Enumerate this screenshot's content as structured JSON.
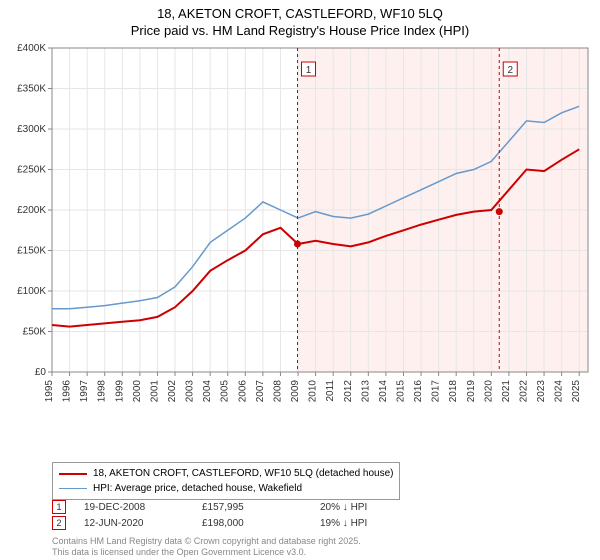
{
  "title_line1": "18, AKETON CROFT, CASTLEFORD, WF10 5LQ",
  "title_line2": "Price paid vs. HM Land Registry's House Price Index (HPI)",
  "chart": {
    "type": "line",
    "background_color": "#ffffff",
    "plot_bg_left": "#ffffff",
    "plot_bg_right": "#fff0f0",
    "grid_color": "#e6e6e6",
    "border_color": "#888888",
    "xmin": 1995,
    "xmax": 2025.5,
    "xticks": [
      1995,
      1996,
      1997,
      1998,
      1999,
      2000,
      2001,
      2002,
      2003,
      2004,
      2005,
      2006,
      2007,
      2008,
      2009,
      2010,
      2011,
      2012,
      2013,
      2014,
      2015,
      2016,
      2017,
      2018,
      2019,
      2020,
      2021,
      2022,
      2023,
      2024,
      2025
    ],
    "ymin": 0,
    "ymax": 400000,
    "ytick_step": 50000,
    "ytick_labels": [
      "£0",
      "£50K",
      "£100K",
      "£150K",
      "£200K",
      "£250K",
      "£300K",
      "£350K",
      "£400K"
    ],
    "label_fontsize": 10,
    "split_x": 2008.97,
    "series": [
      {
        "name": "HPI: Average price, detached house, Wakefield",
        "color": "#6699cc",
        "width": 1.5,
        "points": [
          [
            1995,
            78000
          ],
          [
            1996,
            78000
          ],
          [
            1997,
            80000
          ],
          [
            1998,
            82000
          ],
          [
            1999,
            85000
          ],
          [
            2000,
            88000
          ],
          [
            2001,
            92000
          ],
          [
            2002,
            105000
          ],
          [
            2003,
            130000
          ],
          [
            2004,
            160000
          ],
          [
            2005,
            175000
          ],
          [
            2006,
            190000
          ],
          [
            2007,
            210000
          ],
          [
            2008,
            200000
          ],
          [
            2009,
            190000
          ],
          [
            2010,
            198000
          ],
          [
            2011,
            192000
          ],
          [
            2012,
            190000
          ],
          [
            2013,
            195000
          ],
          [
            2014,
            205000
          ],
          [
            2015,
            215000
          ],
          [
            2016,
            225000
          ],
          [
            2017,
            235000
          ],
          [
            2018,
            245000
          ],
          [
            2019,
            250000
          ],
          [
            2020,
            260000
          ],
          [
            2021,
            285000
          ],
          [
            2022,
            310000
          ],
          [
            2023,
            308000
          ],
          [
            2024,
            320000
          ],
          [
            2025,
            328000
          ]
        ]
      },
      {
        "name": "18, AKETON CROFT, CASTLEFORD, WF10 5LQ (detached house)",
        "color": "#cc0000",
        "width": 2,
        "points": [
          [
            1995,
            58000
          ],
          [
            1996,
            56000
          ],
          [
            1997,
            58000
          ],
          [
            1998,
            60000
          ],
          [
            1999,
            62000
          ],
          [
            2000,
            64000
          ],
          [
            2001,
            68000
          ],
          [
            2002,
            80000
          ],
          [
            2003,
            100000
          ],
          [
            2004,
            125000
          ],
          [
            2005,
            138000
          ],
          [
            2006,
            150000
          ],
          [
            2007,
            170000
          ],
          [
            2008,
            178000
          ],
          [
            2009,
            158000
          ],
          [
            2010,
            162000
          ],
          [
            2011,
            158000
          ],
          [
            2012,
            155000
          ],
          [
            2013,
            160000
          ],
          [
            2014,
            168000
          ],
          [
            2015,
            175000
          ],
          [
            2016,
            182000
          ],
          [
            2017,
            188000
          ],
          [
            2018,
            194000
          ],
          [
            2019,
            198000
          ],
          [
            2020,
            200000
          ],
          [
            2021,
            225000
          ],
          [
            2022,
            250000
          ],
          [
            2023,
            248000
          ],
          [
            2024,
            262000
          ],
          [
            2025,
            275000
          ]
        ]
      }
    ],
    "markers": [
      {
        "label": "1",
        "x": 2008.97,
        "y": 157995,
        "color": "#cc0000"
      },
      {
        "label": "2",
        "x": 2020.45,
        "y": 198000,
        "color": "#cc0000"
      }
    ]
  },
  "legend": {
    "items": [
      {
        "color": "#cc0000",
        "width": 2,
        "label": "18, AKETON CROFT, CASTLEFORD, WF10 5LQ (detached house)"
      },
      {
        "color": "#6699cc",
        "width": 1.5,
        "label": "HPI: Average price, detached house, Wakefield"
      }
    ]
  },
  "annotations": [
    {
      "num": "1",
      "color": "#cc0000",
      "date": "19-DEC-2008",
      "price": "£157,995",
      "diff": "20% ↓ HPI"
    },
    {
      "num": "2",
      "color": "#cc0000",
      "date": "12-JUN-2020",
      "price": "£198,000",
      "diff": "19% ↓ HPI"
    }
  ],
  "copyright_line1": "Contains HM Land Registry data © Crown copyright and database right 2025.",
  "copyright_line2": "This data is licensed under the Open Government Licence v3.0."
}
